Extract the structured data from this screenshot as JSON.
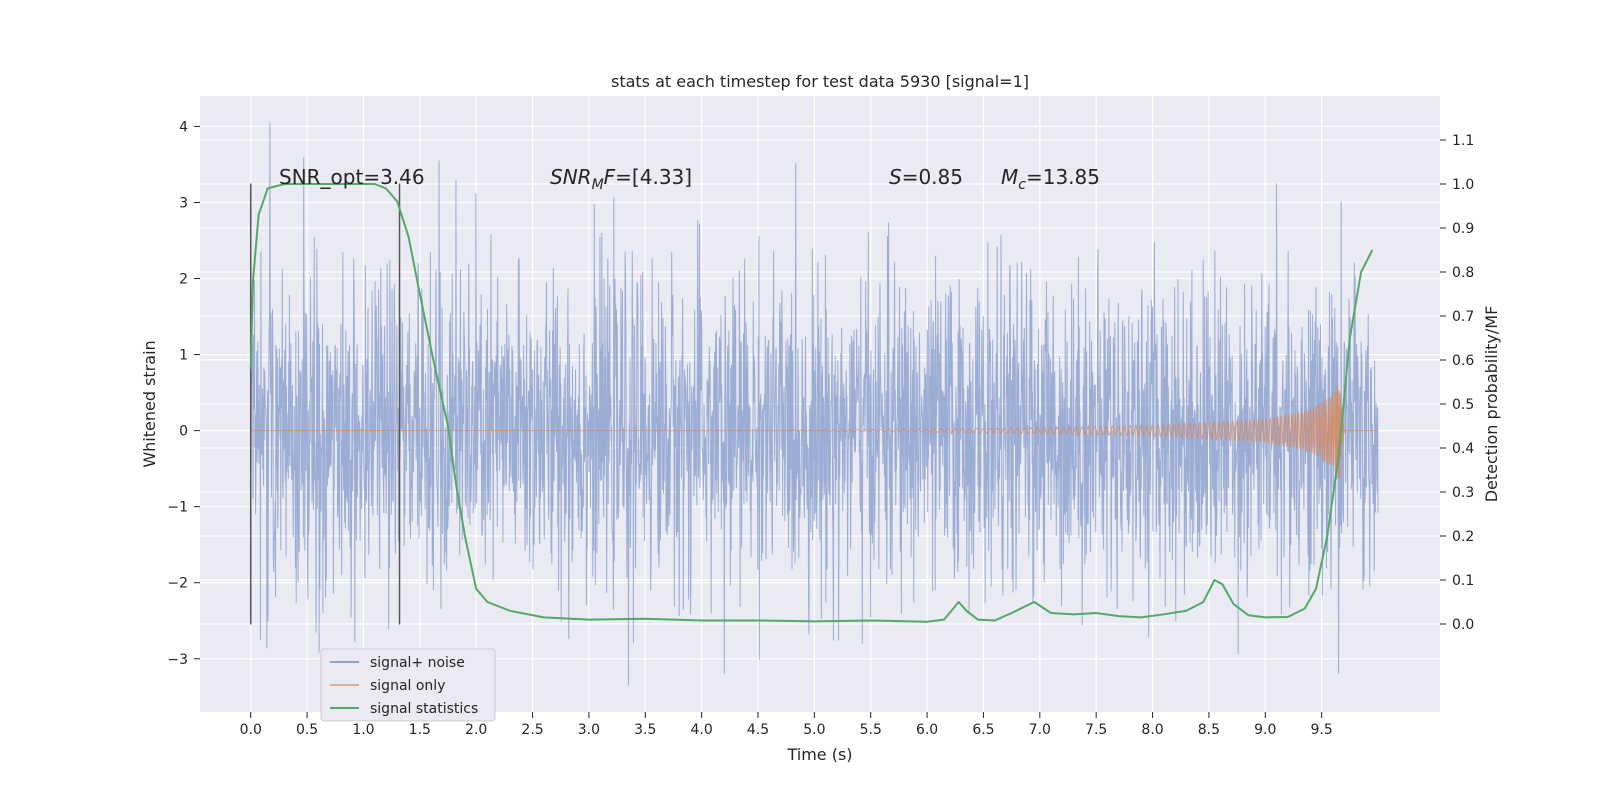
{
  "chart_data": {
    "type": "line",
    "title": "stats at each timestep for test data 5930 [signal=1]",
    "xlabel": "Time (s)",
    "ylabel": "Whitened strain",
    "y2label": "Detection probability/MF",
    "xlim": [
      -0.45,
      10.55
    ],
    "ylim": [
      -3.7,
      4.4
    ],
    "y2lim": [
      -0.2,
      1.2
    ],
    "x_ticks": [
      "0.0",
      "0.5",
      "1.0",
      "1.5",
      "2.0",
      "2.5",
      "3.0",
      "3.5",
      "4.0",
      "4.5",
      "5.0",
      "5.5",
      "6.0",
      "6.5",
      "7.0",
      "7.5",
      "8.0",
      "8.5",
      "9.0",
      "9.5"
    ],
    "x_tick_values": [
      0,
      0.5,
      1,
      1.5,
      2,
      2.5,
      3,
      3.5,
      4,
      4.5,
      5,
      5.5,
      6,
      6.5,
      7,
      7.5,
      8,
      8.5,
      9,
      9.5
    ],
    "y_ticks": [
      "−3",
      "−2",
      "−1",
      "0",
      "1",
      "2",
      "3",
      "4"
    ],
    "y_tick_values": [
      -3,
      -2,
      -1,
      0,
      1,
      2,
      3,
      4
    ],
    "y2_ticks": [
      "0.0",
      "0.1",
      "0.2",
      "0.3",
      "0.4",
      "0.5",
      "0.6",
      "0.7",
      "0.8",
      "0.9",
      "1.0",
      "1.1"
    ],
    "y2_tick_values": [
      0,
      0.1,
      0.2,
      0.3,
      0.4,
      0.5,
      0.6,
      0.7,
      0.8,
      0.9,
      1.0,
      1.1
    ],
    "grid": true,
    "legend_position": "lower-left",
    "series": [
      {
        "name": "signal+ noise",
        "color": "#8da2cf",
        "axis": "left",
        "kind": "dense-noise",
        "time_range": [
          0,
          10
        ],
        "typical_band": [
          -1.5,
          1.5
        ],
        "max_value": 4.05,
        "min_value": -3.35,
        "peaks": [
          [
            0.17,
            4.05
          ],
          [
            0.47,
            3.6
          ],
          [
            1.67,
            3.55
          ],
          [
            1.82,
            3.3
          ],
          [
            9.1,
            3.25
          ],
          [
            3.35,
            -3.35
          ],
          [
            9.65,
            -3.2
          ],
          [
            4.2,
            -3.2
          ]
        ]
      },
      {
        "name": "signal only",
        "color": "#dd8452",
        "axis": "left",
        "kind": "chirp",
        "time_range": [
          0,
          9.7
        ],
        "envelope": [
          [
            0,
            0.0
          ],
          [
            5.0,
            0.005
          ],
          [
            6.0,
            0.02
          ],
          [
            7.0,
            0.04
          ],
          [
            8.0,
            0.07
          ],
          [
            9.0,
            0.15
          ],
          [
            9.4,
            0.28
          ],
          [
            9.6,
            0.48
          ],
          [
            9.66,
            0.65
          ],
          [
            9.7,
            0.0
          ]
        ]
      },
      {
        "name": "signal statistics",
        "color": "#55a868",
        "axis": "right",
        "x": [
          0.0,
          0.02,
          0.07,
          0.15,
          0.3,
          0.6,
          1.0,
          1.1,
          1.2,
          1.3,
          1.4,
          1.5,
          1.62,
          1.75,
          1.82,
          1.9,
          2.0,
          2.1,
          2.3,
          2.6,
          3.0,
          3.5,
          4.0,
          4.5,
          5.0,
          5.5,
          6.0,
          6.15,
          6.28,
          6.35,
          6.45,
          6.6,
          6.75,
          6.95,
          7.1,
          7.3,
          7.5,
          7.7,
          7.9,
          8.1,
          8.3,
          8.45,
          8.55,
          8.62,
          8.72,
          8.85,
          9.0,
          9.2,
          9.35,
          9.45,
          9.55,
          9.65,
          9.75,
          9.85,
          9.95
        ],
        "y": [
          0.58,
          0.78,
          0.93,
          0.99,
          1.0,
          1.0,
          1.0,
          1.0,
          0.99,
          0.96,
          0.88,
          0.75,
          0.6,
          0.45,
          0.32,
          0.2,
          0.08,
          0.05,
          0.03,
          0.015,
          0.01,
          0.012,
          0.008,
          0.008,
          0.006,
          0.008,
          0.005,
          0.01,
          0.05,
          0.03,
          0.01,
          0.008,
          0.025,
          0.05,
          0.025,
          0.022,
          0.025,
          0.018,
          0.015,
          0.022,
          0.03,
          0.05,
          0.1,
          0.09,
          0.045,
          0.02,
          0.015,
          0.016,
          0.035,
          0.08,
          0.2,
          0.38,
          0.65,
          0.8,
          0.85
        ]
      }
    ],
    "vertical_lines": [
      {
        "x": 0.0,
        "y_from": -2.55,
        "y_to": 3.25
      },
      {
        "x": 1.32,
        "y_from": -2.55,
        "y_to": 3.25
      }
    ],
    "annotations": [
      {
        "id": "snr-opt",
        "text": "SNR_opt=3.46",
        "x": 0.2,
        "y": 3.25
      },
      {
        "id": "snr-mf",
        "text": "SNR_MF=[4.33]",
        "x": 2.6,
        "y": 3.25
      },
      {
        "id": "s-value",
        "text": "S=0.85",
        "x": 5.6,
        "y": 3.25
      },
      {
        "id": "mc-value",
        "text": "M_c=13.85",
        "x": 6.6,
        "y": 3.25
      }
    ]
  }
}
